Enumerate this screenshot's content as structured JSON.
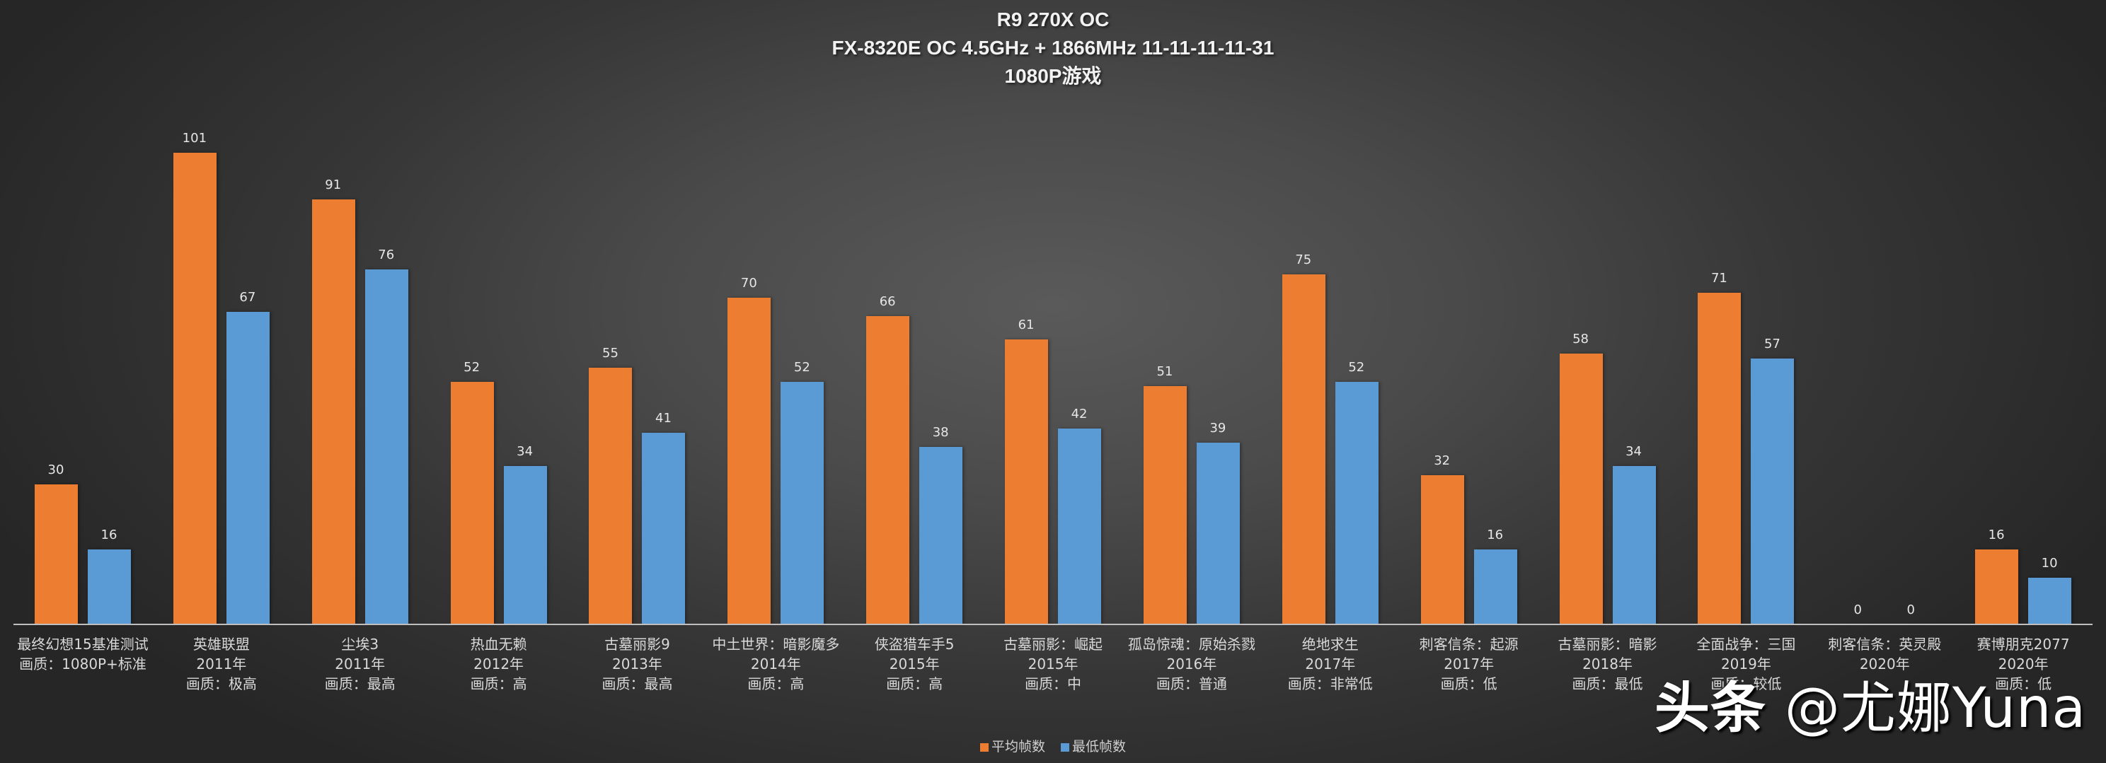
{
  "title": {
    "line1": "R9 270X  OC",
    "line2": "FX-8320E  OC 4.5GHz + 1866MHz  11-11-11-11-31",
    "line3": "1080P游戏"
  },
  "legend": {
    "avg_label": "平均帧数",
    "min_label": "最低帧数"
  },
  "colors": {
    "avg": "#ed7d31",
    "min": "#5b9bd5",
    "axis": "#bfbfbf"
  },
  "watermark": {
    "brand": "头条",
    "handle": "@尤娜Yuna"
  },
  "chart_data": {
    "type": "bar",
    "title": "R9 270X OC / FX-8320E OC 4.5GHz + 1866MHz 11-11-11-11-31 / 1080P游戏",
    "xlabel": "",
    "ylabel": "",
    "ylim": [
      0,
      110
    ],
    "grid": false,
    "legend_position": "bottom",
    "categories": [
      {
        "lines": [
          "最终幻想15基准测试",
          "画质：1080P+标准"
        ]
      },
      {
        "lines": [
          "英雄联盟",
          "2011年",
          "画质：极高"
        ]
      },
      {
        "lines": [
          "尘埃3",
          "2011年",
          "画质：最高"
        ]
      },
      {
        "lines": [
          "热血无赖",
          "2012年",
          "画质：高"
        ]
      },
      {
        "lines": [
          "古墓丽影9",
          "2013年",
          "画质：最高"
        ]
      },
      {
        "lines": [
          "中土世界：暗影魔多",
          "2014年",
          "画质：高"
        ]
      },
      {
        "lines": [
          "侠盗猎车手5",
          "2015年",
          "画质：高"
        ]
      },
      {
        "lines": [
          "古墓丽影：崛起",
          "2015年",
          "画质：中"
        ]
      },
      {
        "lines": [
          "孤岛惊魂：原始杀戮",
          "2016年",
          "画质：普通"
        ]
      },
      {
        "lines": [
          "绝地求生",
          "2017年",
          "画质：非常低"
        ]
      },
      {
        "lines": [
          "刺客信条：起源",
          "2017年",
          "画质：低"
        ]
      },
      {
        "lines": [
          "古墓丽影：暗影",
          "2018年",
          "画质：最低"
        ]
      },
      {
        "lines": [
          "全面战争：三国",
          "2019年",
          "画质：较低"
        ]
      },
      {
        "lines": [
          "刺客信条：英灵殿",
          "2020年"
        ]
      },
      {
        "lines": [
          "赛博朋克2077",
          "2020年",
          "画质：低"
        ]
      }
    ],
    "series": [
      {
        "name": "平均帧数",
        "color": "#ed7d31",
        "values": [
          30,
          101,
          91,
          52,
          55,
          70,
          66,
          61,
          51,
          75,
          32,
          58,
          71,
          0,
          16
        ]
      },
      {
        "name": "最低帧数",
        "color": "#5b9bd5",
        "values": [
          16,
          67,
          76,
          34,
          41,
          52,
          38,
          42,
          39,
          52,
          16,
          34,
          57,
          0,
          10
        ]
      }
    ]
  }
}
